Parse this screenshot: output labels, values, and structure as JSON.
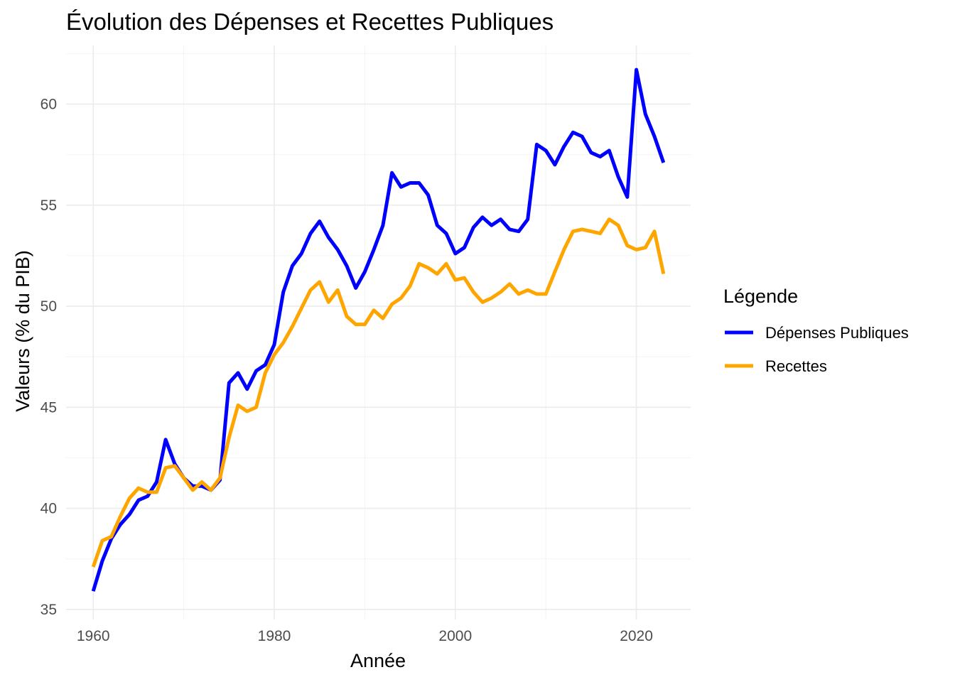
{
  "chart_data": {
    "type": "line",
    "title": "Évolution des Dépenses et Recettes Publiques",
    "xlabel": "Année",
    "ylabel": "Valeurs (% du PIB)",
    "xlim": [
      1957,
      2026
    ],
    "ylim": [
      34.5,
      62.9
    ],
    "x_ticks": [
      1960,
      1980,
      2000,
      2020
    ],
    "y_ticks": [
      35,
      40,
      45,
      50,
      55,
      60
    ],
    "grid": true,
    "legend": {
      "title": "Légende",
      "position": "right"
    },
    "x": [
      1960,
      1961,
      1962,
      1963,
      1964,
      1965,
      1966,
      1967,
      1968,
      1969,
      1970,
      1971,
      1972,
      1973,
      1974,
      1975,
      1976,
      1977,
      1978,
      1979,
      1980,
      1981,
      1982,
      1983,
      1984,
      1985,
      1986,
      1987,
      1988,
      1989,
      1990,
      1991,
      1992,
      1993,
      1994,
      1995,
      1996,
      1997,
      1998,
      1999,
      2000,
      2001,
      2002,
      2003,
      2004,
      2005,
      2006,
      2007,
      2008,
      2009,
      2010,
      2011,
      2012,
      2013,
      2014,
      2015,
      2016,
      2017,
      2018,
      2019,
      2020,
      2021,
      2022,
      2023
    ],
    "series": [
      {
        "name": "Dépenses Publiques",
        "color": "#0000ff",
        "values": [
          35.9,
          37.4,
          38.5,
          39.2,
          39.7,
          40.4,
          40.6,
          41.3,
          43.4,
          42.2,
          41.5,
          41.1,
          41.1,
          40.9,
          41.4,
          46.2,
          46.7,
          45.9,
          46.8,
          47.1,
          48.1,
          50.7,
          52.0,
          52.6,
          53.6,
          54.2,
          53.4,
          52.8,
          52.0,
          50.9,
          51.7,
          52.8,
          54.0,
          56.6,
          55.9,
          56.1,
          56.1,
          55.5,
          54.0,
          53.6,
          52.6,
          52.9,
          53.9,
          54.4,
          54.0,
          54.3,
          53.8,
          53.7,
          54.3,
          58.0,
          57.7,
          57.0,
          57.9,
          58.6,
          58.4,
          57.6,
          57.4,
          57.7,
          56.4,
          55.4,
          61.7,
          59.5,
          58.4,
          57.1
        ]
      },
      {
        "name": "Recettes",
        "color": "#ffa500",
        "values": [
          37.1,
          38.4,
          38.6,
          39.6,
          40.5,
          41.0,
          40.8,
          40.8,
          42.0,
          42.1,
          41.5,
          40.9,
          41.3,
          40.9,
          41.5,
          43.5,
          45.1,
          44.8,
          45.0,
          46.7,
          47.6,
          48.2,
          49.0,
          49.9,
          50.8,
          51.2,
          50.2,
          50.8,
          49.5,
          49.1,
          49.1,
          49.8,
          49.4,
          50.1,
          50.4,
          51.0,
          52.1,
          51.9,
          51.6,
          52.1,
          51.3,
          51.4,
          50.7,
          50.2,
          50.4,
          50.7,
          51.1,
          50.6,
          50.8,
          50.6,
          50.6,
          51.7,
          52.8,
          53.7,
          53.8,
          53.7,
          53.6,
          54.3,
          54.0,
          53.0,
          52.8,
          52.9,
          53.7,
          51.6
        ]
      }
    ]
  }
}
